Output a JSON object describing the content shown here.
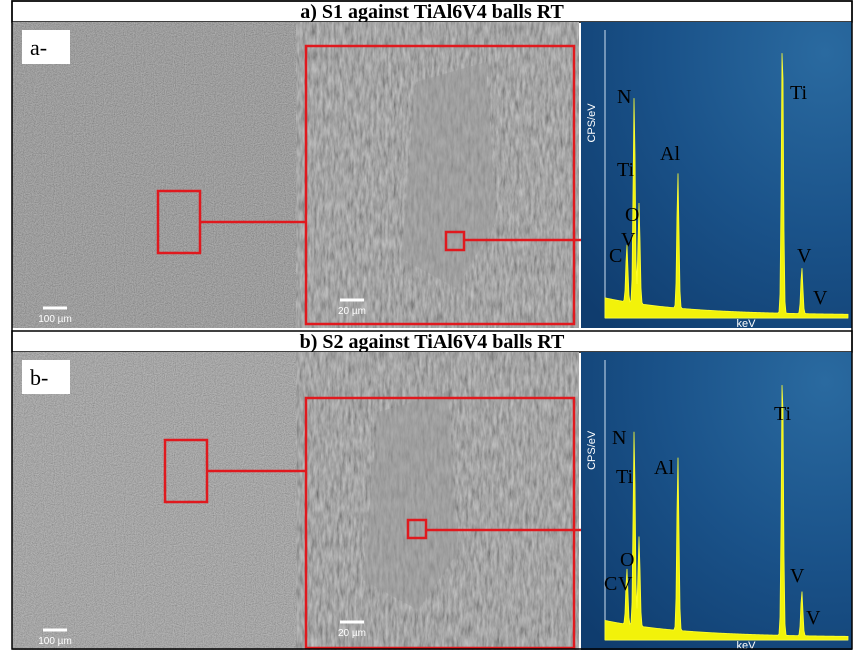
{
  "panels": [
    {
      "title": "a)  S1 against TiAl6V4 balls RT",
      "label": "a-",
      "overview_scale": "100 µm",
      "zoom_scale": "20 µm",
      "spectrum": {
        "y_label": "CPS/eV",
        "x_label": "keV",
        "peaks": [
          "N",
          "Ti",
          "O",
          "V",
          "C",
          "Al",
          "Ti",
          "V",
          "V"
        ]
      }
    },
    {
      "title": "b)  S2 against TiAl6V4 balls RT",
      "label": "b-",
      "overview_scale": "100 µm",
      "zoom_scale": "20 µm",
      "spectrum": {
        "y_label": "CPS/eV",
        "x_label": "keV",
        "peaks": [
          "N",
          "Ti",
          "Al",
          "O",
          "C",
          "V",
          "Ti",
          "V",
          "V"
        ]
      }
    }
  ]
}
